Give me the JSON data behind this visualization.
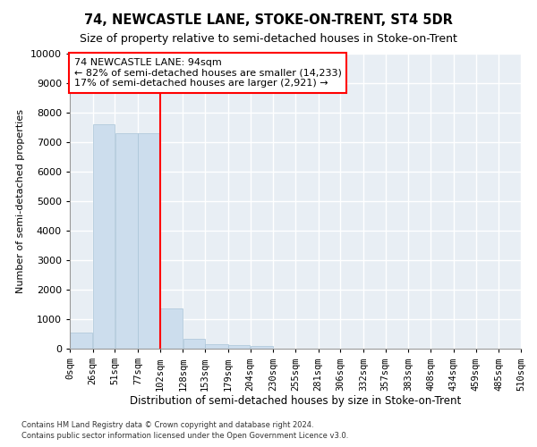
{
  "title": "74, NEWCASTLE LANE, STOKE-ON-TRENT, ST4 5DR",
  "subtitle": "Size of property relative to semi-detached houses in Stoke-on-Trent",
  "xlabel": "Distribution of semi-detached houses by size in Stoke-on-Trent",
  "ylabel": "Number of semi-detached properties",
  "footnote1": "Contains HM Land Registry data © Crown copyright and database right 2024.",
  "footnote2": "Contains public sector information licensed under the Open Government Licence v3.0.",
  "bar_values": [
    550,
    7600,
    7300,
    7300,
    1350,
    330,
    160,
    110,
    80,
    0,
    0,
    0,
    0,
    0,
    0,
    0,
    0,
    0,
    0,
    0
  ],
  "bar_labels": [
    "0sqm",
    "26sqm",
    "51sqm",
    "77sqm",
    "102sqm",
    "128sqm",
    "153sqm",
    "179sqm",
    "204sqm",
    "230sqm",
    "255sqm",
    "281sqm",
    "306sqm",
    "332sqm",
    "357sqm",
    "383sqm",
    "408sqm",
    "434sqm",
    "459sqm",
    "485sqm",
    "510sqm"
  ],
  "bin_edges": [
    0,
    26,
    51,
    77,
    102,
    128,
    153,
    179,
    204,
    230,
    255,
    281,
    306,
    332,
    357,
    383,
    408,
    434,
    459,
    485,
    510
  ],
  "bar_color": "#ccdded",
  "bar_edgecolor": "#aac4d8",
  "red_line_x": 102,
  "annotation_title": "74 NEWCASTLE LANE: 94sqm",
  "annotation_line1": "← 82% of semi-detached houses are smaller (14,233)",
  "annotation_line2": "17% of semi-detached houses are larger (2,921) →",
  "ylim": [
    0,
    10000
  ],
  "yticks": [
    0,
    1000,
    2000,
    3000,
    4000,
    5000,
    6000,
    7000,
    8000,
    9000,
    10000
  ],
  "bg_color": "#e8eef4",
  "grid_color": "#ffffff",
  "fig_bg_color": "#ffffff",
  "title_fontsize": 10.5,
  "subtitle_fontsize": 9.0
}
